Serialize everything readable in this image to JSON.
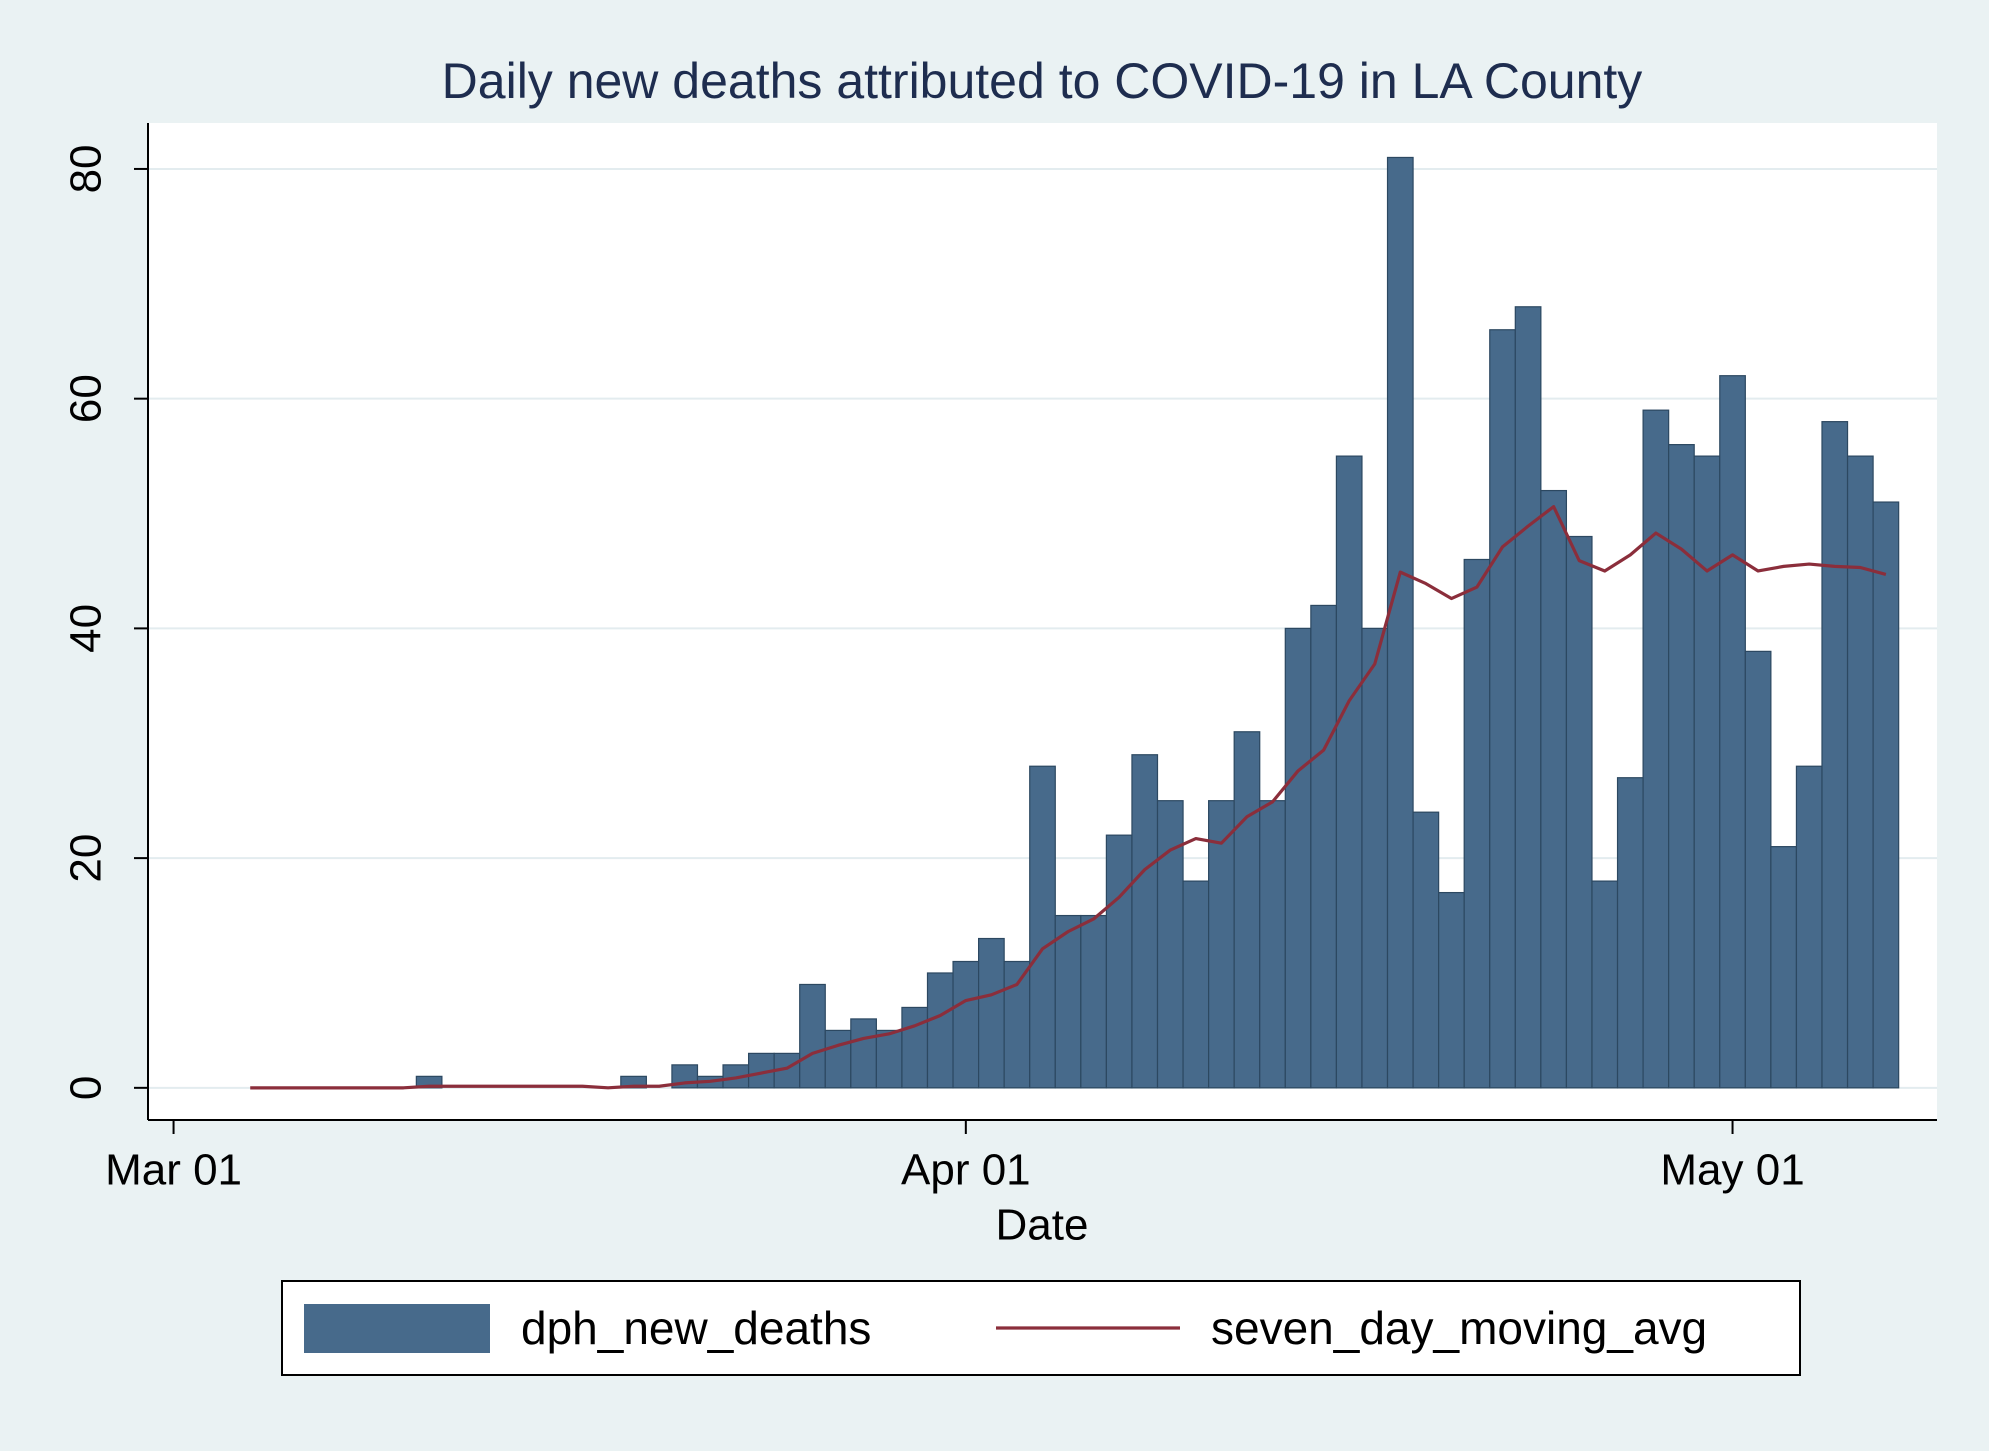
{
  "chart_data": {
    "type": "bar",
    "title": "Daily new deaths attributed to COVID-19 in LA County",
    "xlabel": "Date",
    "x": [
      "Mar 04",
      "Mar 05",
      "Mar 06",
      "Mar 07",
      "Mar 08",
      "Mar 09",
      "Mar 10",
      "Mar 11",
      "Mar 12",
      "Mar 13",
      "Mar 14",
      "Mar 15",
      "Mar 16",
      "Mar 17",
      "Mar 18",
      "Mar 19",
      "Mar 20",
      "Mar 21",
      "Mar 22",
      "Mar 23",
      "Mar 24",
      "Mar 25",
      "Mar 26",
      "Mar 27",
      "Mar 28",
      "Mar 29",
      "Mar 30",
      "Mar 31",
      "Apr 01",
      "Apr 02",
      "Apr 03",
      "Apr 04",
      "Apr 05",
      "Apr 06",
      "Apr 07",
      "Apr 08",
      "Apr 09",
      "Apr 10",
      "Apr 11",
      "Apr 12",
      "Apr 13",
      "Apr 14",
      "Apr 15",
      "Apr 16",
      "Apr 17",
      "Apr 18",
      "Apr 19",
      "Apr 20",
      "Apr 21",
      "Apr 22",
      "Apr 23",
      "Apr 24",
      "Apr 25",
      "Apr 26",
      "Apr 27",
      "Apr 28",
      "Apr 29",
      "Apr 30",
      "May 01",
      "May 02",
      "May 03",
      "May 04",
      "May 05",
      "May 06",
      "May 07"
    ],
    "series": [
      {
        "name": "dph_new_deaths",
        "type": "bar",
        "color": "#476a8b",
        "values": [
          0,
          0,
          0,
          0,
          0,
          0,
          0,
          1,
          0,
          0,
          0,
          0,
          0,
          0,
          0,
          1,
          0,
          2,
          1,
          2,
          3,
          3,
          9,
          5,
          6,
          5,
          7,
          10,
          11,
          13,
          11,
          28,
          15,
          15,
          22,
          29,
          25,
          18,
          25,
          31,
          25,
          40,
          42,
          55,
          40,
          81,
          24,
          17,
          46,
          66,
          68,
          52,
          48,
          18,
          27,
          59,
          56,
          55,
          62,
          38,
          21,
          28,
          58,
          55,
          51
        ]
      },
      {
        "name": "seven_day_moving_avg",
        "type": "line",
        "color": "#8b2e3b",
        "values": [
          0,
          0,
          0,
          0,
          0,
          0,
          0,
          0.14,
          0.14,
          0.14,
          0.14,
          0.14,
          0.14,
          0.14,
          0,
          0.14,
          0.14,
          0.43,
          0.57,
          0.86,
          1.29,
          1.71,
          3,
          3.7,
          4.3,
          4.7,
          5.4,
          6.3,
          7.6,
          8.1,
          9,
          12.1,
          13.6,
          14.7,
          16.6,
          19,
          20.7,
          21.7,
          21.3,
          23.6,
          24.9,
          27.6,
          29.4,
          33.7,
          36.9,
          44.9,
          43.9,
          42.6,
          43.6,
          47.1,
          48.9,
          50.6,
          45.9,
          45,
          46.4,
          48.3,
          46.9,
          45,
          46.4,
          45,
          45.4,
          45.6,
          45.4,
          45.3,
          44.7
        ]
      }
    ],
    "xlim": [
      "Feb 29",
      "May 09"
    ],
    "xticks": [
      "Mar 01",
      "Apr 01",
      "May 01"
    ],
    "ylim": [
      -2.8,
      84
    ],
    "yticks": [
      0,
      20,
      40,
      60,
      80
    ],
    "grid": true,
    "legend": "bottom"
  }
}
